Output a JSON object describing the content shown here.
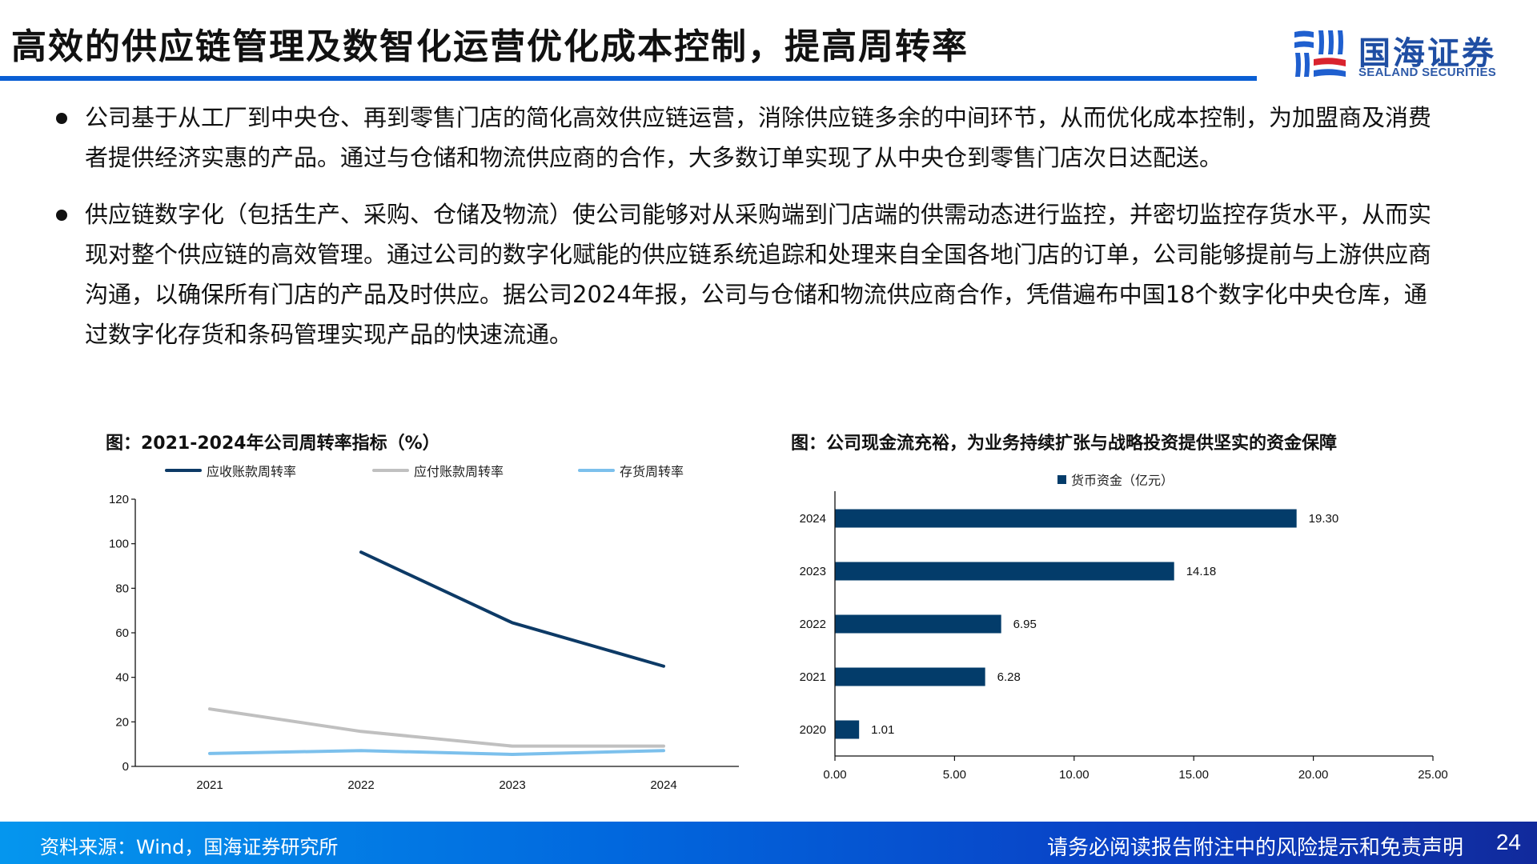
{
  "header": {
    "title": "高效的供应链管理及数智化运营优化成本控制，提高周转率",
    "accent_color": "#0a5fd4",
    "logo": {
      "cn": "国海证券",
      "en": "SEALAND SECURITIES",
      "icon": "sealand-logo-icon"
    }
  },
  "bullets": [
    {
      "text": "公司基于从工厂到中央仓、再到零售门店的简化高效供应链运营，消除供应链多余的中间环节，从而优化成本控制，为加盟商及消费者提供经济实惠的产品。通过与仓储和物流供应商的合作，大多数订单实现了从中央仓到零售门店次日达配送。"
    },
    {
      "text": "供应链数字化（包括生产、采购、仓储及物流）使公司能够对从采购端到门店端的供需动态进行监控，并密切监控存货水平，从而实现对整个供应链的高效管理。通过公司的数字化赋能的供应链系统追踪和处理来自全国各地门店的订单，公司能够提前与上游供应商沟通，以确保所有门店的产品及时供应。据公司2024年报，公司与仓储和物流供应商合作，凭借遍布中国18个数字化中央仓库，通过数字化存货和条码管理实现产品的快速流通。"
    }
  ],
  "chart_data": [
    {
      "type": "line",
      "title": "图：2021-2024年公司周转率指标（%）",
      "categories": [
        "2021",
        "2022",
        "2023",
        "2024"
      ],
      "series": [
        {
          "name": "应收账款周转率",
          "color": "#0d3a66",
          "values": [
            null,
            96.2,
            64.5,
            45.0
          ]
        },
        {
          "name": "应付账款周转率",
          "color": "#c0c0c0",
          "values": [
            25.8,
            15.7,
            9.1,
            9.1
          ]
        },
        {
          "name": "存货周转率",
          "color": "#7cc0ec",
          "values": [
            5.8,
            7.1,
            5.4,
            7.1
          ]
        }
      ],
      "xlabel": "",
      "ylabel": "",
      "ylim": [
        0,
        120
      ],
      "yticks": [
        "0",
        "20",
        "40",
        "60",
        "80",
        "100",
        "120"
      ],
      "grid": false,
      "legend_position": "top"
    },
    {
      "type": "bar",
      "orientation": "horizontal",
      "title": "图：公司现金流充裕，为业务持续扩张与战略投资提供坚实的资金保障",
      "categories": [
        "2024",
        "2023",
        "2022",
        "2021",
        "2020"
      ],
      "series": [
        {
          "name": "货币资金（亿元）",
          "color": "#033c6a",
          "values": [
            19.3,
            14.18,
            6.95,
            6.28,
            1.01
          ]
        }
      ],
      "value_labels": [
        "19.30",
        "14.18",
        "6.95",
        "6.28",
        "1.01"
      ],
      "xlabel": "",
      "ylabel": "",
      "xlim": [
        0,
        25
      ],
      "xticks": [
        "0.00",
        "5.00",
        "10.00",
        "15.00",
        "20.00",
        "25.00"
      ],
      "grid": false,
      "legend_position": "top"
    }
  ],
  "footer": {
    "source": "资料来源：Wind，国海证券研究所",
    "disclaimer": "请务必阅读报告附注中的风险提示和免责声明",
    "page_number": "24"
  }
}
